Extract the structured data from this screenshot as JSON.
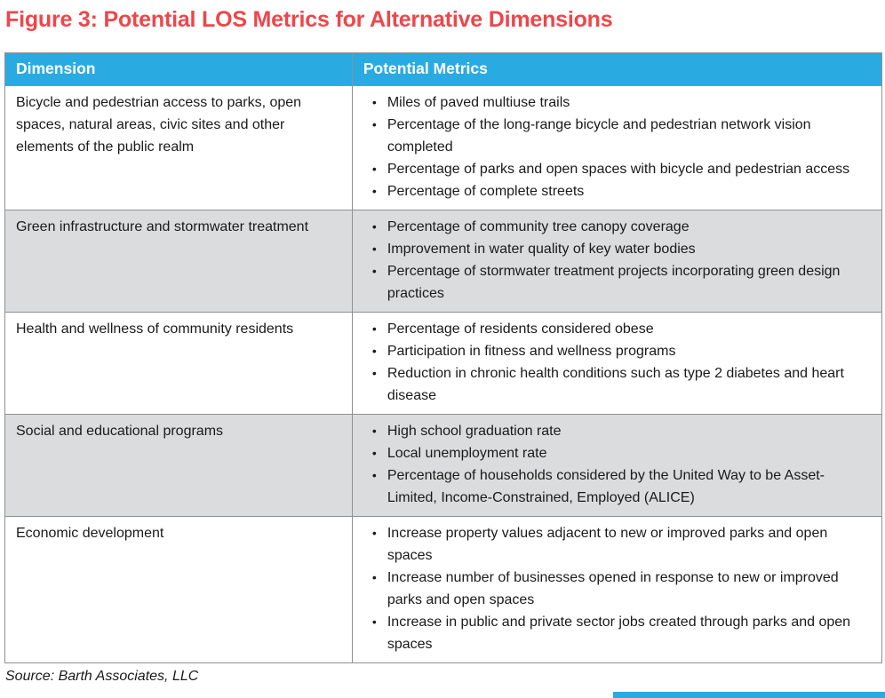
{
  "title": "Figure 3: Potential LOS Metrics for Alternative Dimensions",
  "source_note": "Source: Barth Associates, LLC",
  "colors": {
    "header_bg": "#29ABE2",
    "title_red": "#EE464B",
    "row_alt_bg": "#DBDCDD",
    "border": "#909090",
    "accent": "#29ABE2"
  },
  "table": {
    "columns": [
      "Dimension",
      "Potential Metrics"
    ],
    "rows": [
      {
        "dimension": "Bicycle and pedestrian access to parks, open spaces, natural areas, civic sites and other elements of the public realm",
        "metrics": [
          "Miles of paved multiuse trails",
          "Percentage of the long-range bicycle and pedestrian network vision completed",
          "Percentage of parks and open spaces with bicycle and pedestrian access",
          "Percentage of complete streets"
        ]
      },
      {
        "dimension": "Green infrastructure and stormwater treatment",
        "metrics": [
          "Percentage of community tree canopy coverage",
          "Improvement in water quality of key water bodies",
          "Percentage of stormwater treatment projects incorporating green design practices"
        ]
      },
      {
        "dimension": "Health and wellness of community residents",
        "metrics": [
          "Percentage of residents considered obese",
          "Participation in fitness and wellness programs",
          "Reduction in chronic health conditions such as type 2 diabetes and heart disease"
        ]
      },
      {
        "dimension": "Social and educational programs",
        "metrics": [
          "High school graduation rate",
          "Local unemployment rate",
          "Percentage of households considered by the United Way to be Asset-Limited, Income-Constrained, Employed (ALICE)"
        ]
      },
      {
        "dimension": "Economic development",
        "metrics": [
          "Increase property values adjacent to new or improved parks and open spaces",
          "Increase number of businesses opened in response to new or improved parks and open spaces",
          "Increase in public and private sector jobs created through parks and open spaces"
        ]
      }
    ]
  }
}
